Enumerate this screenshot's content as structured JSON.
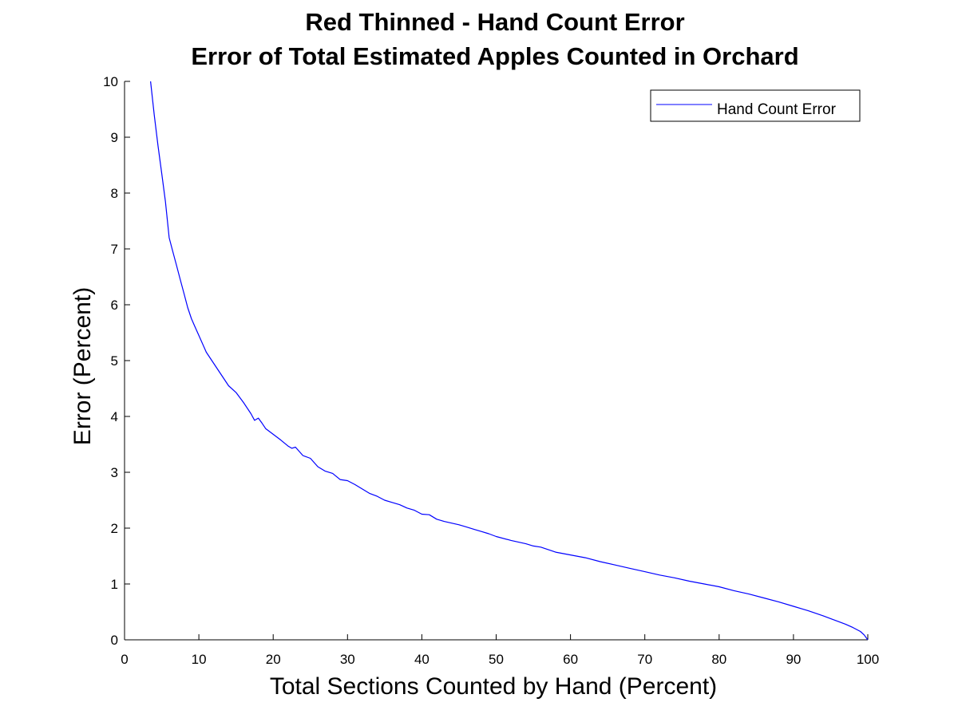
{
  "chart_data": {
    "type": "line",
    "title": "Red Thinned - Hand Count Error",
    "subtitle": "Error of Total Estimated Apples Counted in Orchard",
    "xlabel": "Total Sections Counted by Hand (Percent)",
    "ylabel": "Error (Percent)",
    "xlim": [
      0,
      100
    ],
    "ylim": [
      0,
      10
    ],
    "xticks": [
      "0",
      "10",
      "20",
      "30",
      "40",
      "50",
      "60",
      "70",
      "80",
      "90",
      "100"
    ],
    "yticks": [
      "0",
      "1",
      "2",
      "3",
      "4",
      "5",
      "6",
      "7",
      "8",
      "9",
      "10"
    ],
    "grid": false,
    "legend_position": "top-right",
    "series": [
      {
        "name": "Hand Count Error",
        "color": "#0000ff",
        "x": [
          3.5,
          4,
          4.5,
          5,
          5.5,
          6,
          6.5,
          7,
          7.5,
          8,
          8.5,
          9,
          9.5,
          10,
          11,
          12,
          13,
          14,
          15,
          16,
          17,
          17.5,
          18,
          18.5,
          19,
          20,
          21,
          22,
          22.5,
          23,
          24,
          25,
          26,
          27,
          28,
          29,
          30,
          31,
          32,
          33,
          34,
          35,
          36,
          37,
          38,
          39,
          40,
          41,
          42,
          43,
          44,
          45,
          46,
          47,
          48,
          49,
          50,
          52,
          54,
          55,
          56,
          58,
          60,
          62,
          64,
          66,
          68,
          70,
          72,
          74,
          76,
          78,
          80,
          82,
          84,
          86,
          88,
          90,
          92,
          94,
          95,
          96,
          97,
          98,
          99,
          99.5,
          100
        ],
        "y": [
          10.0,
          9.4,
          8.85,
          8.35,
          7.85,
          7.2,
          6.95,
          6.7,
          6.45,
          6.2,
          5.95,
          5.75,
          5.6,
          5.45,
          5.15,
          4.95,
          4.75,
          4.55,
          4.43,
          4.25,
          4.05,
          3.93,
          3.97,
          3.88,
          3.78,
          3.68,
          3.58,
          3.47,
          3.43,
          3.45,
          3.3,
          3.25,
          3.1,
          3.02,
          2.98,
          2.87,
          2.85,
          2.78,
          2.7,
          2.62,
          2.57,
          2.5,
          2.46,
          2.42,
          2.36,
          2.32,
          2.25,
          2.24,
          2.16,
          2.12,
          2.09,
          2.06,
          2.02,
          1.98,
          1.94,
          1.9,
          1.85,
          1.78,
          1.72,
          1.68,
          1.66,
          1.57,
          1.52,
          1.47,
          1.4,
          1.34,
          1.28,
          1.22,
          1.16,
          1.11,
          1.05,
          1.0,
          0.95,
          0.88,
          0.82,
          0.75,
          0.68,
          0.6,
          0.52,
          0.43,
          0.38,
          0.33,
          0.28,
          0.22,
          0.15,
          0.09,
          0.0
        ]
      }
    ]
  }
}
